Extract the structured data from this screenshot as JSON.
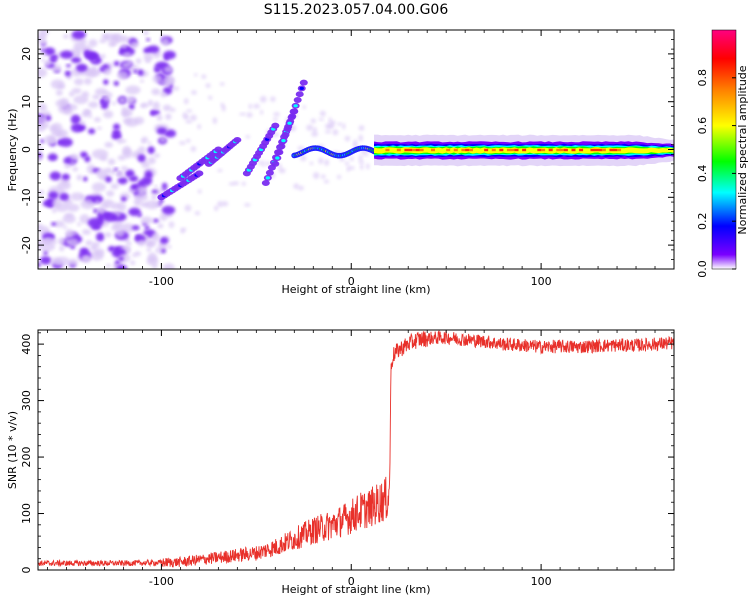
{
  "title": "S115.2023.057.04.00.G06",
  "colors": {
    "snr_line": "#e8302a",
    "spectrogram_faint": "#d7c3f5",
    "spectrogram_mid": "#7a2cf0",
    "background": "#ffffff"
  },
  "chart_data": [
    {
      "type": "heatmap",
      "title": "S115.2023.057.04.00.G06",
      "xlabel": "Height of straight line (km)",
      "ylabel": "Frequency (Hz)",
      "xlim": [
        -165,
        170
      ],
      "ylim": [
        -25,
        25
      ],
      "x_ticks": [
        -100,
        0,
        100
      ],
      "y_ticks": [
        -20,
        -10,
        0,
        10,
        20
      ],
      "grid": false,
      "colorbar": {
        "label": "Normalized spectral amplitude",
        "range": [
          0,
          1
        ],
        "ticks": [
          "0.0",
          "0.2",
          "0.4",
          "0.6",
          "0.8"
        ],
        "colormap": [
          "#ffffff",
          "#7a00ff",
          "#0000ff",
          "#00ffff",
          "#00ff00",
          "#ffff00",
          "#ff8000",
          "#ff0000",
          "#ff0080"
        ]
      },
      "ridge": {
        "description_values": "dominant frequency ridge near 0 Hz for heights above about 15 km",
        "points": [
          {
            "x": 15,
            "y": 0,
            "amp": 0.75
          },
          {
            "x": 40,
            "y": 0,
            "amp": 0.85
          },
          {
            "x": 80,
            "y": 0,
            "amp": 0.8
          },
          {
            "x": 120,
            "y": 0,
            "amp": 0.7
          },
          {
            "x": 165,
            "y": -0.5,
            "amp": 0.45
          }
        ]
      }
    },
    {
      "type": "line",
      "xlabel": "Height of straight line (km)",
      "ylabel": "SNR (10 * v/v)",
      "xlim": [
        -165,
        170
      ],
      "ylim": [
        0,
        425
      ],
      "x_ticks": [
        -100,
        0,
        100
      ],
      "y_ticks": [
        0,
        100,
        200,
        300,
        400
      ],
      "grid": false,
      "series": [
        {
          "x": [
            -165,
            -140,
            -120,
            -100,
            -90,
            -80,
            -70,
            -60,
            -50,
            -40,
            -30,
            -20,
            -10,
            0,
            5,
            10,
            15,
            18,
            20,
            21,
            22,
            25,
            30,
            35,
            40,
            50,
            60,
            70,
            80,
            90,
            100,
            110,
            120,
            130,
            140,
            150,
            160,
            170
          ],
          "values": [
            12,
            12,
            12,
            13,
            14,
            18,
            22,
            26,
            30,
            40,
            55,
            70,
            80,
            95,
            105,
            110,
            120,
            125,
            130,
            360,
            380,
            390,
            400,
            408,
            410,
            412,
            408,
            405,
            400,
            398,
            395,
            396,
            395,
            397,
            398,
            398,
            400,
            402
          ]
        }
      ]
    }
  ]
}
